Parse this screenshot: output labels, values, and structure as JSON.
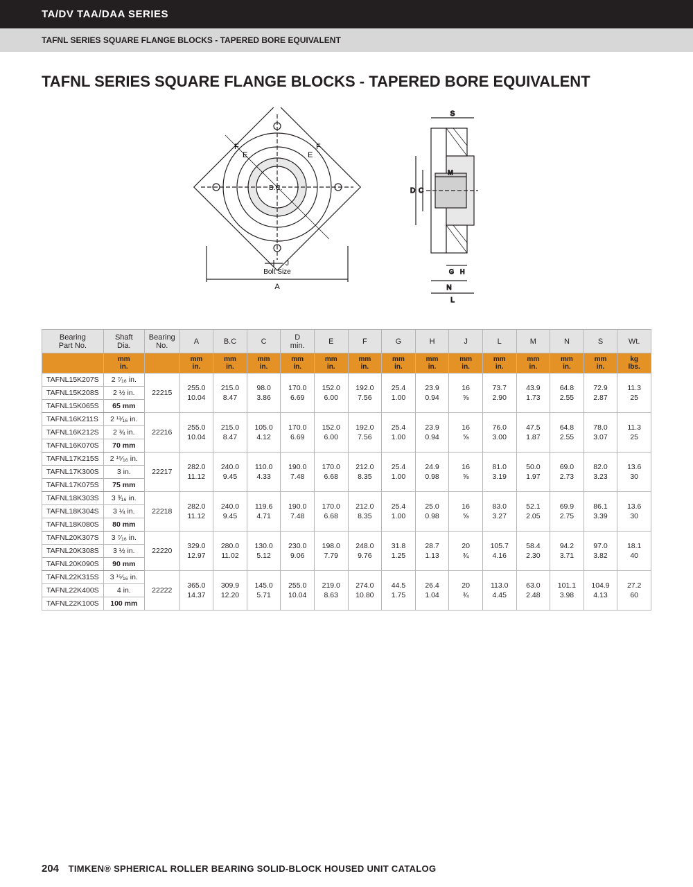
{
  "header": {
    "series": "TA/DV TAA/DAA SERIES",
    "subtitle": "TAFNL SERIES SQUARE FLANGE BLOCKS - TAPERED BORE EQUIVALENT",
    "title": "TAFNL SERIES SQUARE FLANGE BLOCKS - TAPERED BORE EQUIVALENT"
  },
  "diagram": {
    "front_labels": {
      "A": "A",
      "F": "F",
      "E": "E",
      "BC": "B.C.",
      "J": "J",
      "bolt": "Bolt Size"
    },
    "side_labels": {
      "S": "S",
      "M": "M",
      "D": "D",
      "C": "C",
      "G": "G",
      "H": "H",
      "N": "N",
      "L": "L"
    }
  },
  "columns": [
    {
      "key": "part",
      "label": "Bearing\nPart No.",
      "unit": ""
    },
    {
      "key": "shaft",
      "label": "Shaft\nDia.",
      "unit": "mm\nin."
    },
    {
      "key": "bno",
      "label": "Bearing\nNo.",
      "unit": ""
    },
    {
      "key": "A",
      "label": "A",
      "unit": "mm\nin."
    },
    {
      "key": "BC",
      "label": "B.C",
      "unit": "mm\nin."
    },
    {
      "key": "C",
      "label": "C",
      "unit": "mm\nin."
    },
    {
      "key": "D",
      "label": "D\nmin.",
      "unit": "mm\nin."
    },
    {
      "key": "E",
      "label": "E",
      "unit": "mm\nin."
    },
    {
      "key": "F",
      "label": "F",
      "unit": "mm\nin."
    },
    {
      "key": "G",
      "label": "G",
      "unit": "mm\nin."
    },
    {
      "key": "H",
      "label": "H",
      "unit": "mm\nin."
    },
    {
      "key": "J",
      "label": "J",
      "unit": "mm\nin."
    },
    {
      "key": "L",
      "label": "L",
      "unit": "mm\nin."
    },
    {
      "key": "M",
      "label": "M",
      "unit": "mm\nin."
    },
    {
      "key": "N",
      "label": "N",
      "unit": "mm\nin."
    },
    {
      "key": "S",
      "label": "S",
      "unit": "mm\nin."
    },
    {
      "key": "Wt",
      "label": "Wt.",
      "unit": "kg\nlbs."
    }
  ],
  "groups": [
    {
      "bearing_no": "22215",
      "parts": [
        {
          "pn": "TAFNL15K207S",
          "shaft": "2 ⁷⁄₁₆ in."
        },
        {
          "pn": "TAFNL15K208S",
          "shaft": "2 ½ in."
        },
        {
          "pn": "TAFNL15K065S",
          "shaft": "65 mm",
          "bold": true
        }
      ],
      "dims": {
        "A": [
          "255.0",
          "10.04"
        ],
        "BC": [
          "215.0",
          "8.47"
        ],
        "C": [
          "98.0",
          "3.86"
        ],
        "D": [
          "170.0",
          "6.69"
        ],
        "E": [
          "152.0",
          "6.00"
        ],
        "F": [
          "192.0",
          "7.56"
        ],
        "G": [
          "25.4",
          "1.00"
        ],
        "H": [
          "23.9",
          "0.94"
        ],
        "J": [
          "16",
          "⅝"
        ],
        "L": [
          "73.7",
          "2.90"
        ],
        "M": [
          "43.9",
          "1.73"
        ],
        "N": [
          "64.8",
          "2.55"
        ],
        "S": [
          "72.9",
          "2.87"
        ],
        "Wt": [
          "11.3",
          "25"
        ]
      }
    },
    {
      "bearing_no": "22216",
      "parts": [
        {
          "pn": "TAFNL16K211S",
          "shaft": "2 ¹¹⁄₁₆ in."
        },
        {
          "pn": "TAFNL16K212S",
          "shaft": "2 ¾ in."
        },
        {
          "pn": "TAFNL16K070S",
          "shaft": "70 mm",
          "bold": true
        }
      ],
      "dims": {
        "A": [
          "255.0",
          "10.04"
        ],
        "BC": [
          "215.0",
          "8.47"
        ],
        "C": [
          "105.0",
          "4.12"
        ],
        "D": [
          "170.0",
          "6.69"
        ],
        "E": [
          "152.0",
          "6.00"
        ],
        "F": [
          "192.0",
          "7.56"
        ],
        "G": [
          "25.4",
          "1.00"
        ],
        "H": [
          "23.9",
          "0.94"
        ],
        "J": [
          "16",
          "⅝"
        ],
        "L": [
          "76.0",
          "3.00"
        ],
        "M": [
          "47.5",
          "1.87"
        ],
        "N": [
          "64.8",
          "2.55"
        ],
        "S": [
          "78.0",
          "3.07"
        ],
        "Wt": [
          "11.3",
          "25"
        ]
      }
    },
    {
      "bearing_no": "22217",
      "parts": [
        {
          "pn": "TAFNL17K215S",
          "shaft": "2 ¹⁵⁄₁₆ in."
        },
        {
          "pn": "TAFNL17K300S",
          "shaft": "3 in."
        },
        {
          "pn": "TAFNL17K075S",
          "shaft": "75 mm",
          "bold": true
        }
      ],
      "dims": {
        "A": [
          "282.0",
          "11.12"
        ],
        "BC": [
          "240.0",
          "9.45"
        ],
        "C": [
          "110.0",
          "4.33"
        ],
        "D": [
          "190.0",
          "7.48"
        ],
        "E": [
          "170.0",
          "6.68"
        ],
        "F": [
          "212.0",
          "8.35"
        ],
        "G": [
          "25.4",
          "1.00"
        ],
        "H": [
          "24.9",
          "0.98"
        ],
        "J": [
          "16",
          "⅝"
        ],
        "L": [
          "81.0",
          "3.19"
        ],
        "M": [
          "50.0",
          "1.97"
        ],
        "N": [
          "69.0",
          "2.73"
        ],
        "S": [
          "82.0",
          "3.23"
        ],
        "Wt": [
          "13.6",
          "30"
        ]
      }
    },
    {
      "bearing_no": "22218",
      "parts": [
        {
          "pn": "TAFNL18K303S",
          "shaft": "3 ³⁄₁₆ in."
        },
        {
          "pn": "TAFNL18K304S",
          "shaft": "3 ¼ in."
        },
        {
          "pn": "TAFNL18K080S",
          "shaft": "80 mm",
          "bold": true
        }
      ],
      "dims": {
        "A": [
          "282.0",
          "11.12"
        ],
        "BC": [
          "240.0",
          "9.45"
        ],
        "C": [
          "119.6",
          "4.71"
        ],
        "D": [
          "190.0",
          "7.48"
        ],
        "E": [
          "170.0",
          "6.68"
        ],
        "F": [
          "212.0",
          "8.35"
        ],
        "G": [
          "25.4",
          "1.00"
        ],
        "H": [
          "25.0",
          "0.98"
        ],
        "J": [
          "16",
          "⅝"
        ],
        "L": [
          "83.0",
          "3.27"
        ],
        "M": [
          "52.1",
          "2.05"
        ],
        "N": [
          "69.9",
          "2.75"
        ],
        "S": [
          "86.1",
          "3.39"
        ],
        "Wt": [
          "13.6",
          "30"
        ]
      }
    },
    {
      "bearing_no": "22220",
      "parts": [
        {
          "pn": "TAFNL20K307S",
          "shaft": "3 ⁷⁄₁₆ in."
        },
        {
          "pn": "TAFNL20K308S",
          "shaft": "3 ½ in."
        },
        {
          "pn": "TAFNL20K090S",
          "shaft": "90 mm",
          "bold": true
        }
      ],
      "dims": {
        "A": [
          "329.0",
          "12.97"
        ],
        "BC": [
          "280.0",
          "11.02"
        ],
        "C": [
          "130.0",
          "5.12"
        ],
        "D": [
          "230.0",
          "9.06"
        ],
        "E": [
          "198.0",
          "7.79"
        ],
        "F": [
          "248.0",
          "9.76"
        ],
        "G": [
          "31.8",
          "1.25"
        ],
        "H": [
          "28.7",
          "1.13"
        ],
        "J": [
          "20",
          "¾"
        ],
        "L": [
          "105.7",
          "4.16"
        ],
        "M": [
          "58.4",
          "2.30"
        ],
        "N": [
          "94.2",
          "3.71"
        ],
        "S": [
          "97.0",
          "3.82"
        ],
        "Wt": [
          "18.1",
          "40"
        ]
      }
    },
    {
      "bearing_no": "22222",
      "parts": [
        {
          "pn": "TAFNL22K315S",
          "shaft": "3 ¹⁵⁄₁₆ in."
        },
        {
          "pn": "TAFNL22K400S",
          "shaft": "4 in."
        },
        {
          "pn": "TAFNL22K100S",
          "shaft": "100 mm",
          "bold": true
        }
      ],
      "dims": {
        "A": [
          "365.0",
          "14.37"
        ],
        "BC": [
          "309.9",
          "12.20"
        ],
        "C": [
          "145.0",
          "5.71"
        ],
        "D": [
          "255.0",
          "10.04"
        ],
        "E": [
          "219.0",
          "8.63"
        ],
        "F": [
          "274.0",
          "10.80"
        ],
        "G": [
          "44.5",
          "1.75"
        ],
        "H": [
          "26.4",
          "1.04"
        ],
        "J": [
          "20",
          "¾"
        ],
        "L": [
          "113.0",
          "4.45"
        ],
        "M": [
          "63.0",
          "2.48"
        ],
        "N": [
          "101.1",
          "3.98"
        ],
        "S": [
          "104.9",
          "4.13"
        ],
        "Wt": [
          "27.2",
          "60"
        ]
      }
    }
  ],
  "footer": {
    "page": "204",
    "text": "TIMKEN® SPHERICAL ROLLER BEARING SOLID-BLOCK HOUSED UNIT CATALOG"
  }
}
